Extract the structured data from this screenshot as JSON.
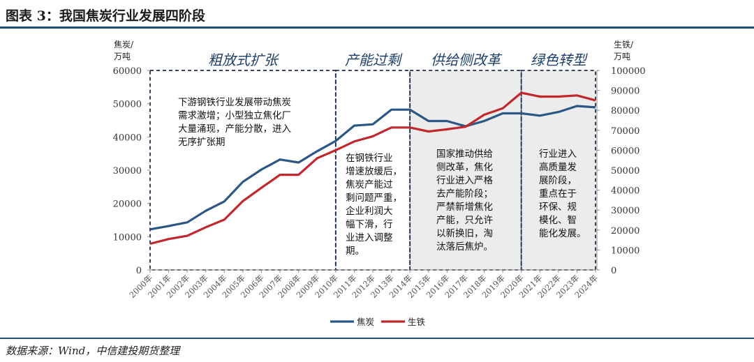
{
  "figure_title": "图表 3：我国焦炭行业发展四阶段",
  "source": "数据来源：Wind，中信建投期货整理",
  "chart_data": {
    "type": "line",
    "left_axis": {
      "unit": [
        "焦炭/",
        "万吨"
      ],
      "ylim": [
        0,
        60000
      ],
      "ticks": [
        "0",
        "10000",
        "20000",
        "30000",
        "40000",
        "50000",
        "60000"
      ]
    },
    "right_axis": {
      "unit": [
        "生铁/",
        "万吨"
      ],
      "ylim": [
        0,
        100000
      ],
      "ticks": [
        "0",
        "10000",
        "20000",
        "30000",
        "40000",
        "50000",
        "60000",
        "70000",
        "80000",
        "90000",
        "100000"
      ]
    },
    "categories": [
      "2000年",
      "2001年",
      "2002年",
      "2003年",
      "2004年",
      "2005年",
      "2006年",
      "2007年",
      "2008年",
      "2009年",
      "2010年",
      "2011年",
      "2012年",
      "2013年",
      "2014年",
      "2015年",
      "2016年",
      "2017年",
      "2018年",
      "2019年",
      "2020年",
      "2021年",
      "2022年",
      "2023年",
      "2024年"
    ],
    "series": [
      {
        "name": "焦炭",
        "axis": "left",
        "color": "#2a5783",
        "values": [
          12200,
          13200,
          14300,
          17800,
          20600,
          26500,
          30200,
          33200,
          32300,
          35700,
          38800,
          43400,
          43800,
          48200,
          48200,
          44800,
          44800,
          43200,
          44800,
          47100,
          47100,
          46400,
          47500,
          49300,
          48900
        ]
      },
      {
        "name": "生铁",
        "axis": "right",
        "color": "#c0282e",
        "values": [
          13100,
          15500,
          17100,
          21400,
          25200,
          34500,
          41200,
          47700,
          47700,
          56000,
          60000,
          64400,
          67000,
          71400,
          71400,
          69400,
          70500,
          71800,
          77800,
          81000,
          88800,
          86900,
          86900,
          87500,
          85000
        ]
      }
    ],
    "phases": [
      {
        "label": "粗放式扩张",
        "from": "2000年",
        "to": "2010年",
        "shaded": false,
        "note": [
          "下游钢铁行业发展带动焦炭",
          "需求激增；小型独立焦化厂",
          "大量涌现，产能分散，进入",
          "无序扩张期"
        ]
      },
      {
        "label": "产能过剩",
        "from": "2010年",
        "to": "2014年",
        "shaded": false,
        "note": [
          "在钢铁行业",
          "增速放缓后，",
          "焦炭产能过",
          "剩问题严重，",
          "企业利润大",
          "幅下滑，行",
          "业进入调整",
          "期。"
        ]
      },
      {
        "label": "供给侧改革",
        "from": "2014年",
        "to": "2020年",
        "shaded": true,
        "note": [
          "国家推动供给",
          "侧改革，焦化",
          "行业进入严格",
          "去产能阶段；",
          "严禁新增焦化",
          "产能，只允许",
          "以新换旧，淘",
          "汰落后焦炉。"
        ]
      },
      {
        "label": "绿色转型",
        "from": "2020年",
        "to": "2024年",
        "shaded": true,
        "note": [
          "行业进入",
          "高质量发",
          "展阶段，",
          "重点在于",
          "环保、规",
          "模化、智",
          "能化发展。"
        ]
      }
    ],
    "legend_position": "bottom-center",
    "grid": false
  }
}
